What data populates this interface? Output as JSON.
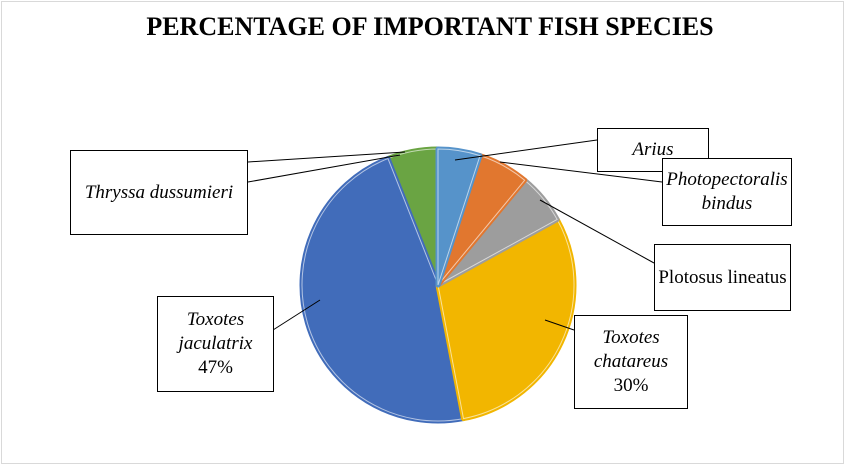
{
  "chart_data": {
    "type": "pie",
    "title": "PERCENTAGE OF IMPORTANT FISH SPECIES",
    "categories": [
      "Arius",
      "Photopectoralis bindus",
      "Plotosus lineatus",
      "Toxotes chatareus",
      "Toxotes jaculatrix",
      "Thryssa dussumieri"
    ],
    "values": [
      5,
      6,
      6,
      30,
      47,
      6
    ],
    "value_labels": [
      null,
      null,
      null,
      "30%",
      "47%",
      null
    ],
    "colors": [
      "#5b9bd5",
      "#ed7d31",
      "#a5a5a5",
      "#ffc000",
      "#4472c4",
      "#70ad47"
    ],
    "italic": [
      true,
      true,
      false,
      true,
      true,
      true
    ]
  }
}
